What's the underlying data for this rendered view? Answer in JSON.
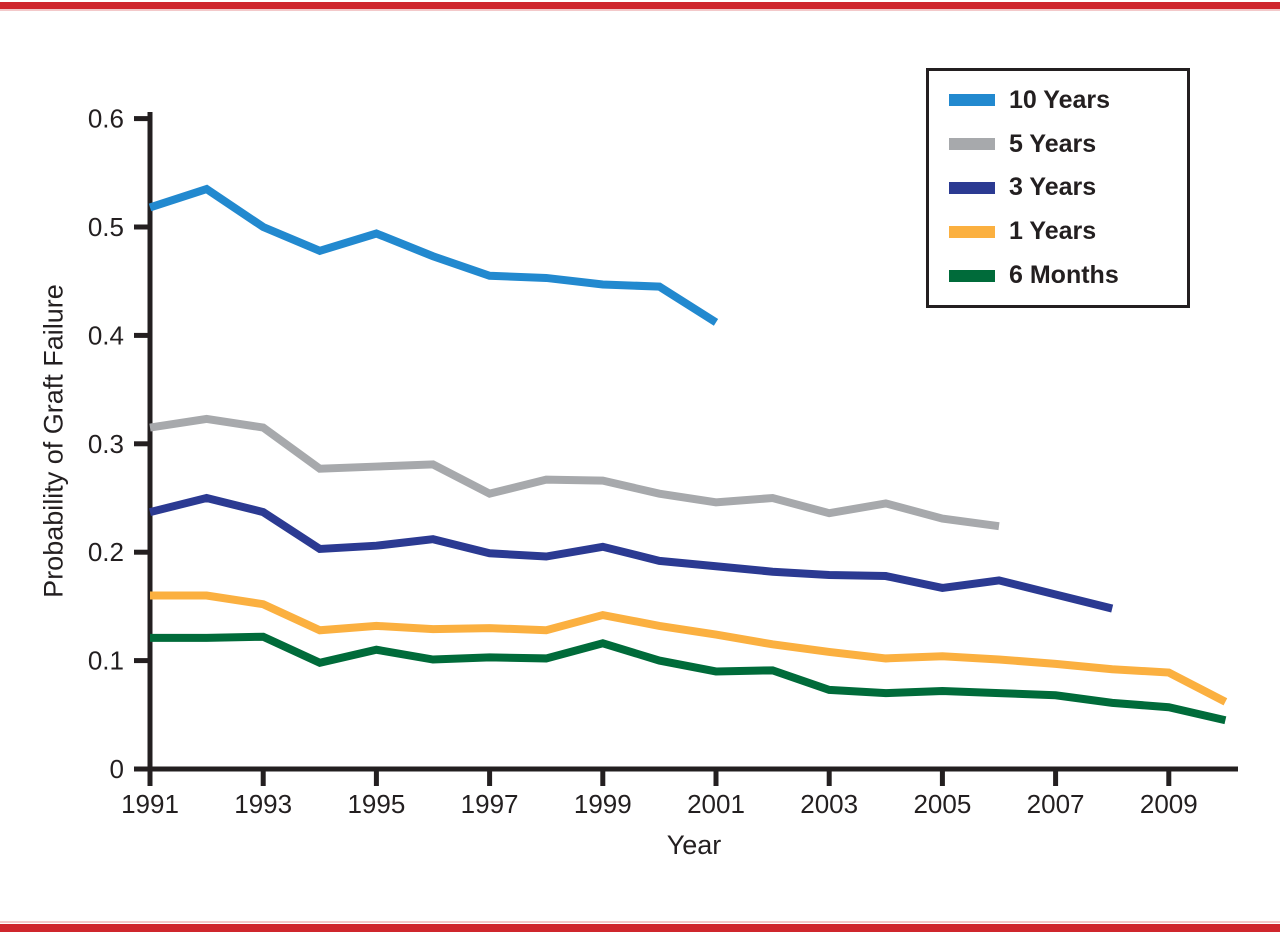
{
  "page": {
    "top_border_color": "#cf262d",
    "bottom_border_color": "#cf262d"
  },
  "chart_data": {
    "type": "line",
    "title": "",
    "xlabel": "Year",
    "ylabel": "Probability of Graft Failure",
    "xlim": [
      1991,
      2010.4
    ],
    "ylim": [
      0,
      0.6
    ],
    "x_ticks": [
      1991,
      1993,
      1995,
      1997,
      1999,
      2001,
      2003,
      2005,
      2007,
      2009
    ],
    "y_ticks": [
      0,
      0.1,
      0.2,
      0.3,
      0.4,
      0.5,
      0.6
    ],
    "grid": false,
    "legend_position": "top-right",
    "axis_color": "#231f20",
    "series": [
      {
        "name": "10 Years",
        "color": "#2289cf",
        "years": [
          1991,
          1992,
          1993,
          1994,
          1995,
          1996,
          1997,
          1998,
          1999,
          2000,
          2001
        ],
        "values": [
          0.518,
          0.535,
          0.5,
          0.478,
          0.494,
          0.473,
          0.455,
          0.453,
          0.447,
          0.445,
          0.412
        ]
      },
      {
        "name": "5 Years",
        "color": "#a7a9ac",
        "years": [
          1991,
          1992,
          1993,
          1994,
          1995,
          1996,
          1997,
          1998,
          1999,
          2000,
          2001,
          2002,
          2003,
          2004,
          2005,
          2006
        ],
        "values": [
          0.315,
          0.323,
          0.315,
          0.277,
          0.279,
          0.281,
          0.254,
          0.267,
          0.266,
          0.254,
          0.246,
          0.25,
          0.236,
          0.245,
          0.231,
          0.224
        ]
      },
      {
        "name": "3 Years",
        "color": "#2b3a92",
        "years": [
          1991,
          1992,
          1993,
          1994,
          1995,
          1996,
          1997,
          1998,
          1999,
          2000,
          2001,
          2002,
          2003,
          2004,
          2005,
          2006,
          2007,
          2008
        ],
        "values": [
          0.237,
          0.25,
          0.237,
          0.203,
          0.206,
          0.212,
          0.199,
          0.196,
          0.205,
          0.192,
          0.187,
          0.182,
          0.179,
          0.178,
          0.167,
          0.174,
          0.161,
          0.148
        ]
      },
      {
        "name": "1 Years",
        "color": "#fbb040",
        "years": [
          1991,
          1992,
          1993,
          1994,
          1995,
          1996,
          1997,
          1998,
          1999,
          2000,
          2001,
          2002,
          2003,
          2004,
          2005,
          2006,
          2007,
          2008,
          2009,
          2010
        ],
        "values": [
          0.16,
          0.16,
          0.152,
          0.128,
          0.132,
          0.129,
          0.13,
          0.128,
          0.142,
          0.132,
          0.124,
          0.115,
          0.108,
          0.102,
          0.104,
          0.101,
          0.097,
          0.092,
          0.089,
          0.062
        ]
      },
      {
        "name": "6 Months",
        "color": "#006b3a",
        "years": [
          1991,
          1992,
          1993,
          1994,
          1995,
          1996,
          1997,
          1998,
          1999,
          2000,
          2001,
          2002,
          2003,
          2004,
          2005,
          2006,
          2007,
          2008,
          2009,
          2010
        ],
        "values": [
          0.121,
          0.121,
          0.122,
          0.098,
          0.11,
          0.101,
          0.103,
          0.102,
          0.116,
          0.1,
          0.09,
          0.091,
          0.073,
          0.07,
          0.072,
          0.07,
          0.068,
          0.061,
          0.057,
          0.045
        ]
      }
    ]
  }
}
